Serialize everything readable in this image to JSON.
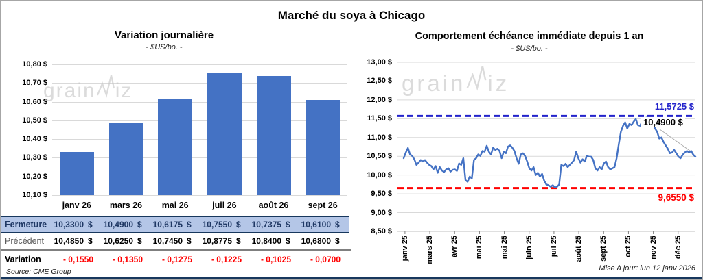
{
  "page": {
    "title": "Marché du soya à Chicago",
    "source": "Source: CME Group",
    "updated": "Mise à jour: lun 12 janv 2026",
    "watermark": {
      "part1": "grain",
      "part2": "iz"
    }
  },
  "colors": {
    "bar": "#4472C4",
    "line": "#4472C4",
    "resistance": "#2323CB",
    "support": "#FF0000",
    "close_row_bg": "#B4C6E7",
    "close_row_text": "#1F3864",
    "grid": "#D9D9D9",
    "axis": "#BFBFBF",
    "bottom_bar": "#17375D"
  },
  "chart_data": [
    {
      "type": "bar",
      "title": "Variation  journalière",
      "subtitle": "- $US/bo. -",
      "categories": [
        "janv 26",
        "mars 26",
        "mai 26",
        "juil 26",
        "août 26",
        "sept 26"
      ],
      "values": [
        10.33,
        10.49,
        10.6175,
        10.755,
        10.7375,
        10.61
      ],
      "ylabel_ticks": [
        "10,80 $",
        "10,70 $",
        "10,60 $",
        "10,50 $",
        "10,40 $",
        "10,30 $",
        "10,20 $",
        "10,10 $"
      ],
      "ylim": [
        10.1,
        10.8
      ],
      "ytick_step": 0.1,
      "grid": true,
      "legend": false,
      "bar_color": "#4472C4"
    },
    {
      "type": "line",
      "title": "Comportement  échéance immédiate depuis 1 an",
      "subtitle": "- $US/bo. -",
      "x_tick_labels": [
        "janv 25",
        "mars 25",
        "avr 25",
        "mai 25",
        "mai 25",
        "juin 25",
        "juil 25",
        "août 25",
        "sept 25",
        "oct 25",
        "nov 25",
        "déc 25"
      ],
      "ylabel_ticks": [
        "13,00 $",
        "12,50 $",
        "12,00 $",
        "11,50 $",
        "11,00 $",
        "10,50 $",
        "10,00 $",
        "9,50 $",
        "9,00 $",
        "8,50 $"
      ],
      "ylim": [
        8.5,
        13.0
      ],
      "ytick_step": 0.5,
      "grid": true,
      "legend": false,
      "line_color": "#4472C4",
      "values": [
        10.45,
        10.6,
        10.72,
        10.55,
        10.51,
        10.42,
        10.27,
        10.33,
        10.4,
        10.36,
        10.4,
        10.33,
        10.27,
        10.24,
        10.15,
        10.24,
        10.06,
        10.21,
        10.12,
        10.08,
        10.15,
        10.18,
        10.09,
        10.14,
        10.15,
        10.11,
        10.31,
        10.27,
        10.45,
        9.87,
        9.82,
        9.96,
        9.91,
        10.4,
        10.45,
        10.55,
        10.51,
        10.64,
        10.62,
        10.78,
        10.62,
        10.55,
        10.73,
        10.67,
        10.7,
        10.64,
        10.45,
        10.62,
        10.58,
        10.76,
        10.79,
        10.73,
        10.64,
        10.45,
        10.3,
        10.55,
        10.58,
        10.51,
        10.36,
        10.18,
        10.12,
        10.21,
        10.0,
        10.06,
        9.96,
        10.03,
        9.85,
        9.75,
        9.73,
        9.69,
        9.73,
        9.67,
        9.69,
        9.75,
        10.27,
        10.24,
        10.3,
        10.21,
        10.27,
        10.33,
        10.4,
        10.62,
        10.45,
        10.33,
        10.42,
        10.36,
        10.51,
        10.49,
        10.49,
        10.4,
        10.18,
        10.12,
        10.21,
        10.15,
        10.31,
        10.36,
        10.21,
        10.15,
        10.18,
        10.21,
        10.45,
        10.82,
        11.15,
        11.31,
        11.4,
        11.24,
        11.36,
        11.33,
        11.42,
        11.49,
        11.33,
        11.31,
        11.42,
        11.51,
        11.53,
        11.42,
        11.45,
        11.4,
        11.24,
        11.15,
        10.97,
        11.0,
        10.88,
        10.79,
        10.7,
        10.58,
        10.6,
        10.67,
        10.58,
        10.49,
        10.45,
        10.54,
        10.6,
        10.64,
        10.6,
        10.64,
        10.54,
        10.49
      ],
      "hlines": [
        {
          "value": 11.5725,
          "label": "11,5725 $",
          "color": "#2323CB"
        },
        {
          "value": 9.655,
          "label": "9,6550 $",
          "color": "#FF0000"
        }
      ],
      "last_value_label": "10,4900 $"
    }
  ],
  "table": {
    "columns": [
      "janv 26",
      "mars 26",
      "mai 26",
      "juil 26",
      "août 26",
      "sept 26"
    ],
    "rows": [
      {
        "label": "Fermeture",
        "style": "close",
        "unit": "$",
        "values": [
          "10,3300",
          "10,4900",
          "10,6175",
          "10,7550",
          "10,7375",
          "10,6100"
        ]
      },
      {
        "label": "Précédent",
        "style": "prev",
        "unit": "$",
        "values": [
          "10,4850",
          "10,6250",
          "10,7450",
          "10,8775",
          "10,8400",
          "10,6800"
        ]
      },
      {
        "label": "Variation",
        "style": "var",
        "unit": "",
        "values": [
          "- 0,1550",
          "- 0,1350",
          "- 0,1275",
          "- 0,1225",
          "- 0,1025",
          "- 0,0700"
        ]
      }
    ]
  }
}
